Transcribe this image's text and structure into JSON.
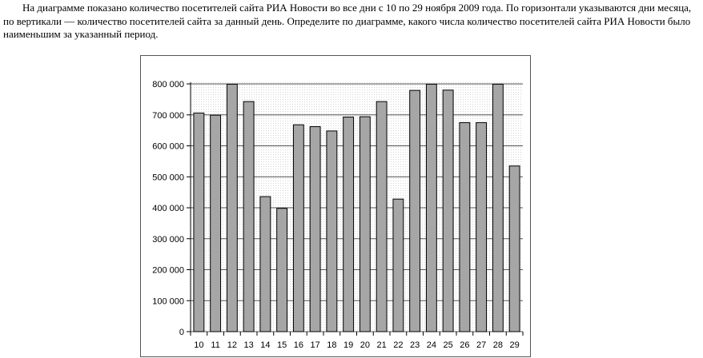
{
  "problem": {
    "text": "На диаграмме показано количество посетителей сайта РИА Новости во все дни с 10 по 29 ноября 2009 года. По горизонтали указываются дни месяца, по вертикали — количество посетителей сайта за данный день. Определите по диаграмме, какого числа количество посетителей сайта РИА Новости было наименьшим за указанный период."
  },
  "chart_data": {
    "type": "bar",
    "categories": [
      "10",
      "11",
      "12",
      "13",
      "14",
      "15",
      "16",
      "17",
      "18",
      "19",
      "20",
      "21",
      "22",
      "23",
      "24",
      "25",
      "26",
      "27",
      "28",
      "29"
    ],
    "values": [
      706000,
      699000,
      799000,
      743000,
      436000,
      398000,
      668000,
      662000,
      648000,
      693000,
      694000,
      743000,
      428000,
      779000,
      799000,
      780000,
      675000,
      675000,
      799000,
      535000
    ],
    "ylim": [
      0,
      800000
    ],
    "yticks": [
      0,
      100000,
      200000,
      300000,
      400000,
      500000,
      600000,
      700000,
      800000
    ],
    "ytick_labels": [
      "0",
      "100 000",
      "200 000",
      "300 000",
      "400 000",
      "500 000",
      "600 000",
      "700 000",
      "800 000"
    ],
    "grid": true,
    "bar_color": "#a6a6a6",
    "title": "",
    "xlabel": "",
    "ylabel": ""
  }
}
